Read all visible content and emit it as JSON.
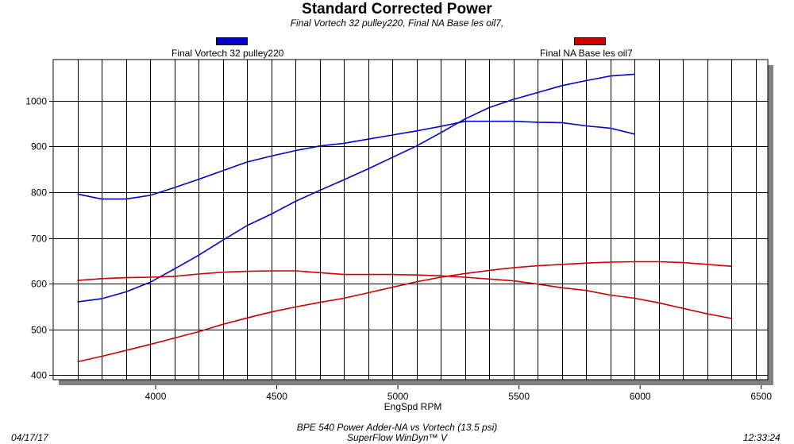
{
  "chart_data": {
    "type": "line",
    "title": "Standard Corrected Power",
    "subtitle": "Final Vortech 32 pulley220, Final NA Base les oil7,",
    "xlabel": "EngSpd RPM",
    "ylabel": "",
    "xlim": [
      3600,
      6550
    ],
    "ylim": [
      390,
      1090
    ],
    "xticks": [
      4000,
      4500,
      5000,
      5500,
      6000,
      6500
    ],
    "yticks": [
      400,
      500,
      600,
      700,
      800,
      900,
      1000
    ],
    "grid": true,
    "legend": [
      {
        "name": "Final Vortech 32 pulley220",
        "color": "#0000cc"
      },
      {
        "name": "Final NA Base les oil7",
        "color": "#cc0000"
      }
    ],
    "series": [
      {
        "legend_index": 0,
        "color": "#0000cc",
        "x": [
          3700,
          3800,
          3900,
          4000,
          4100,
          4200,
          4300,
          4400,
          4500,
          4600,
          4700,
          4800,
          4900,
          5000,
          5100,
          5200,
          5300,
          5400,
          5500,
          5600,
          5700,
          5800,
          5900,
          6000
        ],
        "y": [
          560,
          567,
          582,
          603,
          632,
          662,
          695,
          727,
          752,
          780,
          804,
          827,
          851,
          876,
          901,
          930,
          960,
          985,
          1003,
          1018,
          1033,
          1044,
          1054,
          1058
        ]
      },
      {
        "legend_index": 0,
        "color": "#0000cc",
        "x": [
          3700,
          3800,
          3900,
          4000,
          4100,
          4200,
          4300,
          4400,
          4500,
          4600,
          4700,
          4800,
          4900,
          5000,
          5100,
          5200,
          5300,
          5400,
          5500,
          5600,
          5700,
          5800,
          5900,
          6000
        ],
        "y": [
          796,
          785,
          785,
          793,
          810,
          828,
          847,
          866,
          879,
          891,
          901,
          907,
          916,
          925,
          934,
          944,
          955,
          955,
          955,
          953,
          952,
          945,
          940,
          927
        ]
      },
      {
        "legend_index": 1,
        "color": "#cc0000",
        "x": [
          3700,
          3800,
          3900,
          4000,
          4100,
          4200,
          4300,
          4400,
          4500,
          4600,
          4700,
          4800,
          4900,
          5000,
          5100,
          5200,
          5300,
          5400,
          5500,
          5600,
          5700,
          5800,
          5900,
          6000,
          6100,
          6200,
          6300,
          6400
        ],
        "y": [
          429,
          441,
          454,
          467,
          481,
          495,
          511,
          525,
          538,
          549,
          559,
          568,
          580,
          592,
          604,
          614,
          622,
          629,
          635,
          639,
          642,
          645,
          647,
          648,
          648,
          646,
          642,
          638
        ]
      },
      {
        "legend_index": 1,
        "color": "#cc0000",
        "x": [
          3700,
          3800,
          3900,
          4000,
          4100,
          4200,
          4300,
          4400,
          4500,
          4600,
          4700,
          4800,
          4900,
          5000,
          5100,
          5200,
          5300,
          5400,
          5500,
          5600,
          5700,
          5800,
          5900,
          6000,
          6100,
          6200,
          6300,
          6400
        ],
        "y": [
          607,
          611,
          613,
          614,
          616,
          621,
          625,
          627,
          628,
          628,
          624,
          620,
          620,
          620,
          619,
          617,
          614,
          610,
          606,
          599,
          591,
          585,
          575,
          568,
          558,
          546,
          534,
          524
        ]
      }
    ]
  },
  "footer": {
    "date": "04/17/17",
    "test_name": "BPE 540 Power Adder-NA vs Vortech (13.5 psi)",
    "software": "SuperFlow WinDyn™ V",
    "time": "12:33:24"
  }
}
